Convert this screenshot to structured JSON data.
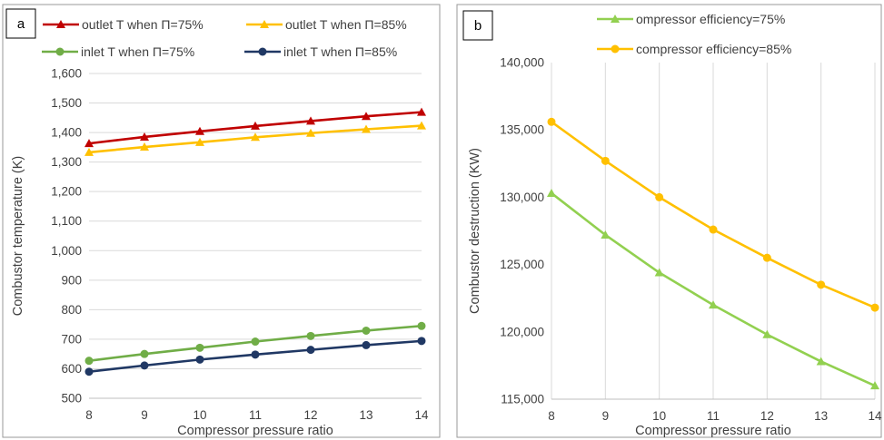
{
  "chart_data": [
    {
      "panel_label": "a",
      "type": "line",
      "xlabel": "Compressor pressure ratio",
      "ylabel": "Combustor  temperature (K)",
      "xlim": [
        8,
        14
      ],
      "ylim": [
        500,
        1600
      ],
      "x_ticks": [
        "8",
        "9",
        "10",
        "11",
        "12",
        "13",
        "14"
      ],
      "y_ticks": [
        "500",
        "600",
        "700",
        "800",
        "900",
        "1,000",
        "1,100",
        "1,200",
        "1,300",
        "1,400",
        "1,500",
        "1,600"
      ],
      "x": [
        8,
        9,
        10,
        11,
        12,
        13,
        14
      ],
      "grid": "horizontal",
      "legend_position": "top",
      "series": [
        {
          "name": "outlet T when Π=75%",
          "color": "#C00000",
          "marker": "triangle",
          "values": [
            1363,
            1385,
            1404,
            1422,
            1439,
            1455,
            1469
          ]
        },
        {
          "name": "outlet T when Π=85%",
          "color": "#FFC000",
          "marker": "triangle",
          "values": [
            1333,
            1351,
            1367,
            1384,
            1398,
            1411,
            1423
          ]
        },
        {
          "name": "inlet T when Π=75%",
          "color": "#70AD47",
          "marker": "circle",
          "values": [
            627,
            650,
            671,
            692,
            711,
            729,
            745
          ]
        },
        {
          "name": "inlet T when Π=85%",
          "color": "#203864",
          "marker": "circle",
          "values": [
            590,
            611,
            631,
            648,
            664,
            680,
            694
          ]
        }
      ]
    },
    {
      "panel_label": "b",
      "type": "line",
      "xlabel": "Compressor pressure ratio",
      "ylabel": "Combustor destruction  (KW)",
      "xlim": [
        8,
        14
      ],
      "ylim": [
        115000,
        140000
      ],
      "x_ticks": [
        "8",
        "9",
        "10",
        "11",
        "12",
        "13",
        "14"
      ],
      "y_ticks": [
        "115,000",
        "120,000",
        "125,000",
        "130,000",
        "135,000",
        "140,000"
      ],
      "x": [
        8,
        9,
        10,
        11,
        12,
        13,
        14
      ],
      "grid": "vertical",
      "legend_position": "top",
      "series": [
        {
          "name": "ompressor efficiency=75%",
          "color": "#92D050",
          "marker": "triangle",
          "values": [
            130300,
            127200,
            124400,
            122000,
            119800,
            117800,
            116000
          ]
        },
        {
          "name": "compressor efficiency=85%",
          "color": "#FFC000",
          "marker": "circle",
          "values": [
            135600,
            132700,
            130000,
            127600,
            125500,
            123500,
            121800
          ]
        }
      ]
    }
  ]
}
